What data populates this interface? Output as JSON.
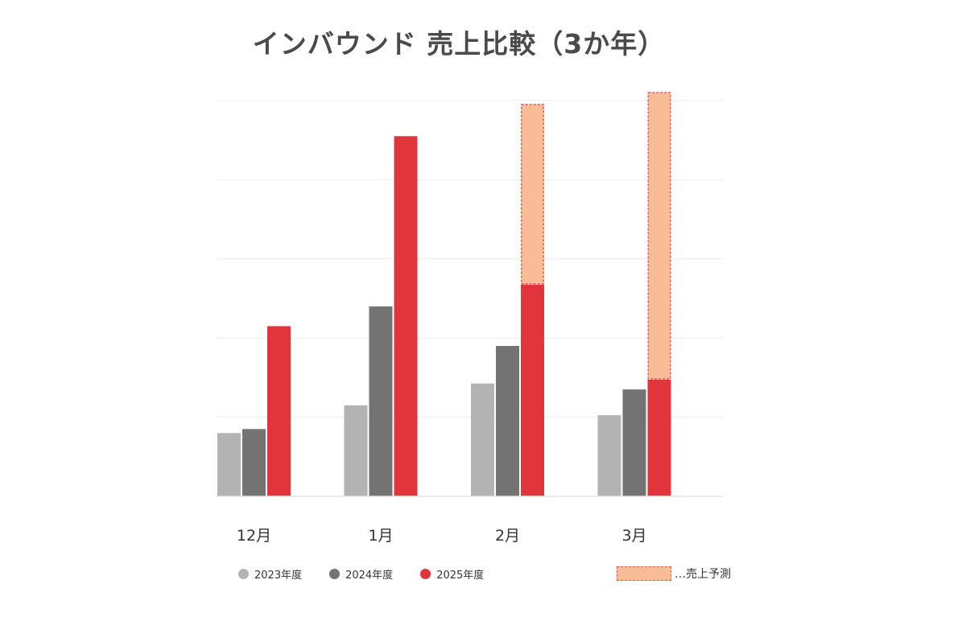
{
  "chart_data": {
    "type": "bar",
    "title": "インバウンド 売上比較（3か年）",
    "categories": [
      "12月",
      "1月",
      "2月",
      "3月"
    ],
    "series": [
      {
        "name": "2023年度",
        "color": "#b3b3b3",
        "values": [
          16,
          23,
          28.5,
          20.5
        ]
      },
      {
        "name": "2024年度",
        "color": "#737373",
        "values": [
          17,
          48,
          38,
          27
        ]
      },
      {
        "name": "2025年度",
        "color": "#e0353a",
        "values": [
          43,
          91,
          53.5,
          29.5
        ]
      }
    ],
    "forecast": {
      "name": "…売上予測",
      "color": "#f8bd97",
      "border_color": "#e05a5a",
      "values": [
        null,
        null,
        99,
        102
      ]
    },
    "ylim": [
      0,
      100
    ],
    "grid": true,
    "legend_position": "bottom"
  }
}
